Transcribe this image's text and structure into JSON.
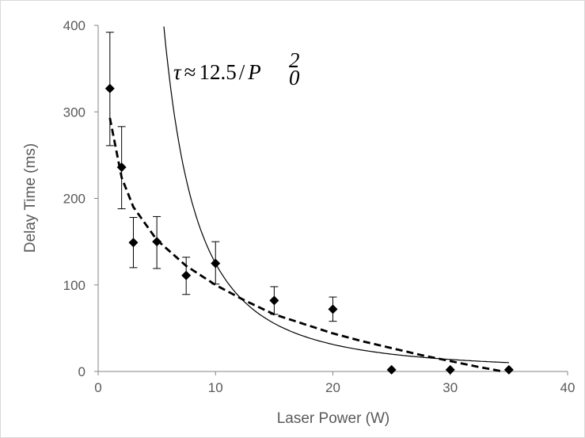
{
  "chart_data": {
    "type": "scatter",
    "title": "",
    "xlabel": "Laser Power (W)",
    "ylabel": "Delay Time (ms)",
    "xlim": [
      0,
      40
    ],
    "ylim": [
      0,
      400
    ],
    "x_ticks": [
      0,
      10,
      20,
      30,
      40
    ],
    "y_ticks": [
      0,
      100,
      200,
      300,
      400
    ],
    "grid": false,
    "legend": "none",
    "annotation": {
      "tau": "τ",
      "approx": "≈",
      "coefficient": "12.5",
      "slash": "/",
      "P": "P",
      "subscript": "0",
      "superscript": "2"
    },
    "series": [
      {
        "style": "diamond-markers-with-error-bars",
        "color": "#000000",
        "x": [
          1,
          2,
          3,
          5,
          7.5,
          10,
          15,
          20,
          25,
          30,
          35
        ],
        "y": [
          327,
          236,
          149,
          150,
          111,
          125,
          82,
          72,
          2,
          2,
          2
        ],
        "y_err_low": [
          66,
          48,
          29,
          31,
          22,
          24,
          16,
          14,
          null,
          null,
          null
        ],
        "y_err_high": [
          65,
          47,
          29,
          29,
          21,
          25,
          16,
          14,
          null,
          null,
          null
        ]
      },
      {
        "style": "dashed-fit",
        "color": "#000000",
        "x": [
          1,
          2,
          3,
          5,
          7.5,
          10,
          12.5,
          15,
          17.5,
          20,
          22.5,
          25,
          27.5,
          30,
          32.5,
          34.5
        ],
        "y": [
          293,
          224,
          190,
          152,
          122,
          100,
          82,
          66,
          55,
          44,
          35,
          27,
          19,
          12,
          5,
          0
        ]
      },
      {
        "style": "solid-model",
        "color": "#000000",
        "model": "12.5/P^2 (plotted in ms)",
        "x_from": 5.6,
        "x_to": 35
      }
    ]
  }
}
